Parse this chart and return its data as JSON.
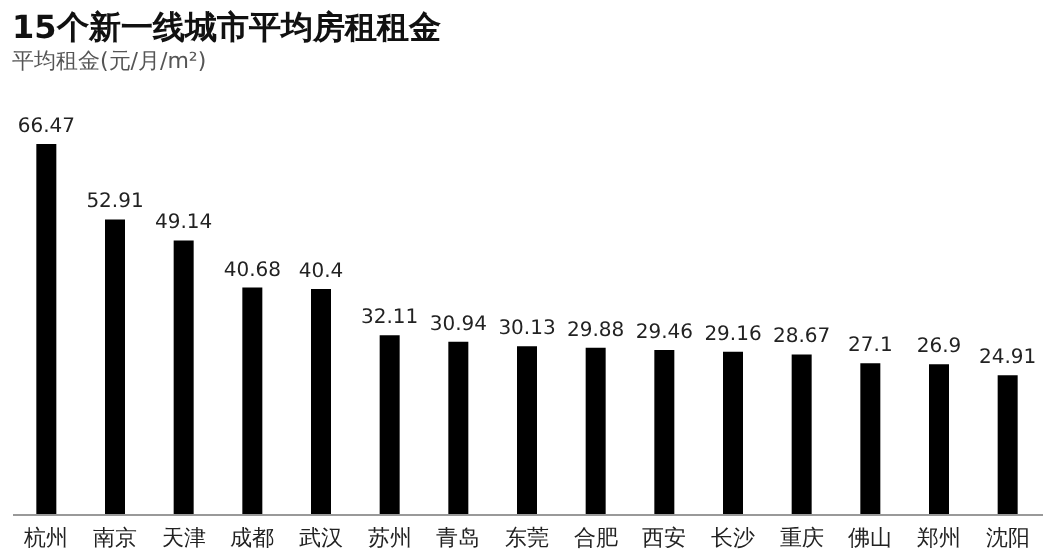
{
  "chart_data": {
    "type": "bar",
    "title": "15个新一线城市平均房租租金",
    "ylabel": "平均租金(元/月/m²)",
    "categories": [
      "杭州",
      "南京",
      "天津",
      "成都",
      "武汉",
      "苏州",
      "青岛",
      "东莞",
      "合肥",
      "西安",
      "长沙",
      "重庆",
      "佛山",
      "郑州",
      "沈阳"
    ],
    "values": [
      66.47,
      52.91,
      49.14,
      40.68,
      40.4,
      32.11,
      30.94,
      30.13,
      29.88,
      29.46,
      29.16,
      28.67,
      27.1,
      26.9,
      24.91
    ],
    "color": "#000000",
    "data_labels": true
  }
}
